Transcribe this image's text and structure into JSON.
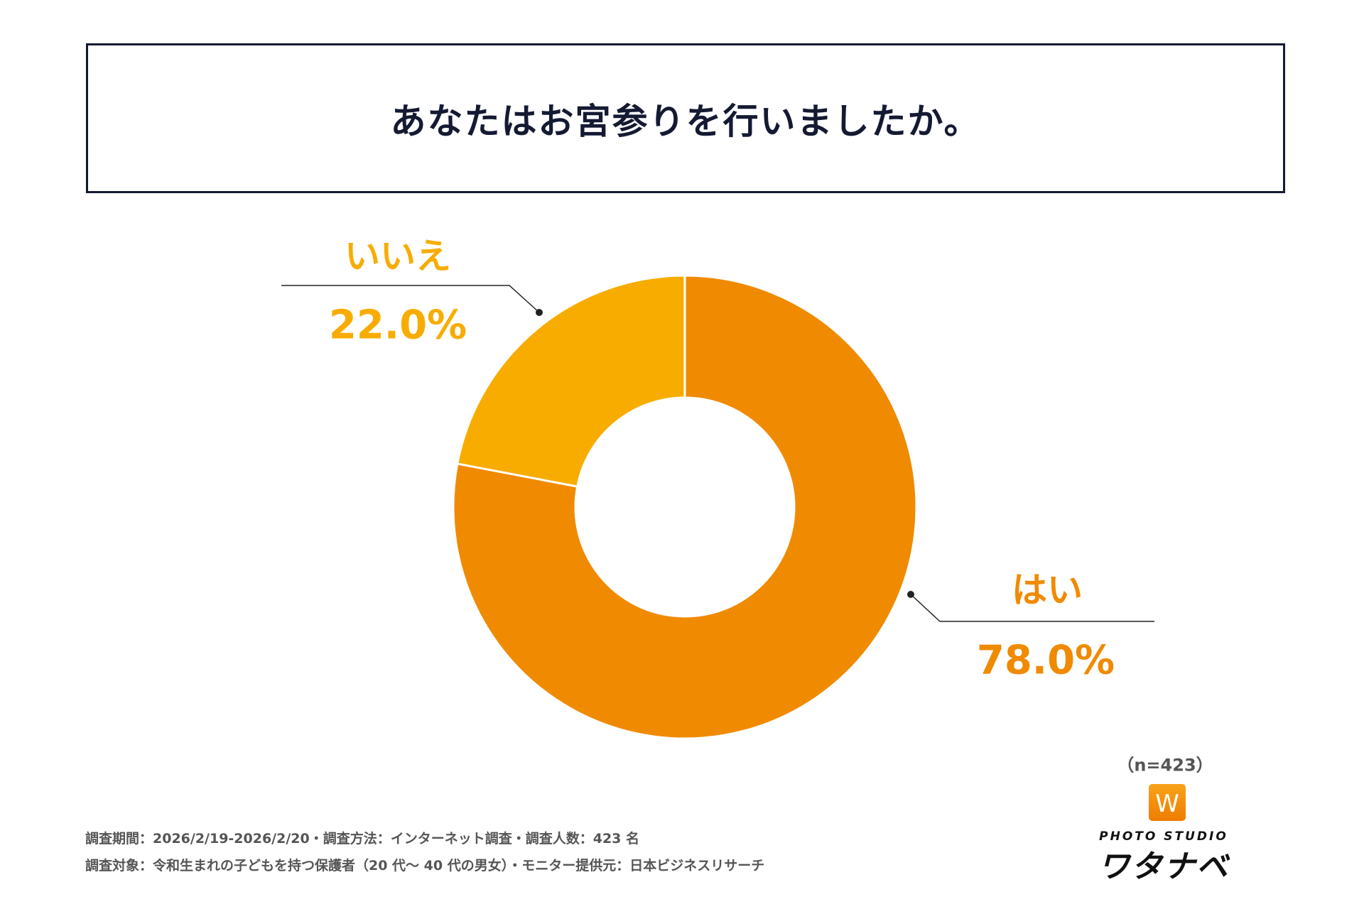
{
  "title": "あなたはお宮参りを行いましたか。",
  "chart_data": {
    "type": "pie",
    "variant": "donut",
    "title": "あなたはお宮参りを行いましたか。",
    "categories": [
      "はい",
      "いいえ"
    ],
    "values": [
      78.0,
      22.0
    ],
    "value_labels": [
      "78.0%",
      "22.0%"
    ],
    "colors": [
      "#F08A00",
      "#F8AC00"
    ],
    "start": "12 o'clock",
    "direction": "clockwise",
    "legend": "none (leader-line labels)"
  },
  "sample_size": "（n=423）",
  "footer": {
    "line1": "調査期間：2026/2/19-2026/2/20・調査方法：インターネット調査・調査人数：423 名",
    "line2": "調査対象：令和生まれの子どもを持つ保護者（20 代～ 40 代の男女）・モニター提供元：日本ビジネスリサーチ"
  },
  "logo": {
    "icon": "W",
    "sub": "PHOTO STUDIO",
    "main": "ワタナベ"
  }
}
